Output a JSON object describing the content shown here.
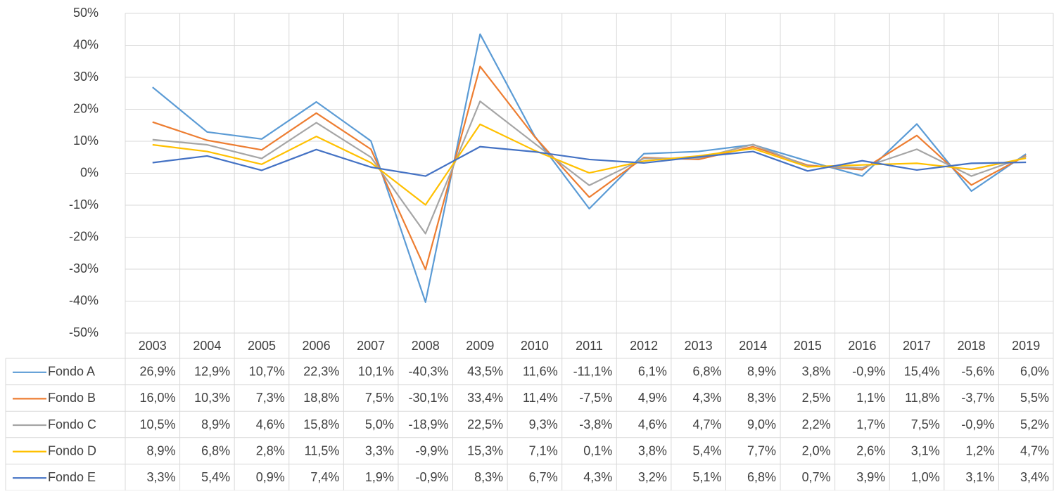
{
  "chart_data": {
    "type": "line",
    "categories": [
      "2003",
      "2004",
      "2005",
      "2006",
      "2007",
      "2008",
      "2009",
      "2010",
      "2011",
      "2012",
      "2013",
      "2014",
      "2015",
      "2016",
      "2017",
      "2018",
      "2019"
    ],
    "series": [
      {
        "name": "Fondo A",
        "color": "#5b9bd5",
        "values": [
          26.9,
          12.9,
          10.7,
          22.3,
          10.1,
          -40.3,
          43.5,
          11.6,
          -11.1,
          6.1,
          6.8,
          8.9,
          3.8,
          -0.9,
          15.4,
          -5.6,
          6.0
        ],
        "value_labels": [
          "26,9%",
          "12,9%",
          "10,7%",
          "22,3%",
          "10,1%",
          "-40,3%",
          "43,5%",
          "11,6%",
          "-11,1%",
          "6,1%",
          "6,8%",
          "8,9%",
          "3,8%",
          "-0,9%",
          "15,4%",
          "-5,6%",
          "6,0%"
        ]
      },
      {
        "name": "Fondo B",
        "color": "#ed7d31",
        "values": [
          16.0,
          10.3,
          7.3,
          18.8,
          7.5,
          -30.1,
          33.4,
          11.4,
          -7.5,
          4.9,
          4.3,
          8.3,
          2.5,
          1.1,
          11.8,
          -3.7,
          5.5
        ],
        "value_labels": [
          "16,0%",
          "10,3%",
          "7,3%",
          "18,8%",
          "7,5%",
          "-30,1%",
          "33,4%",
          "11,4%",
          "-7,5%",
          "4,9%",
          "4,3%",
          "8,3%",
          "2,5%",
          "1,1%",
          "11,8%",
          "-3,7%",
          "5,5%"
        ]
      },
      {
        "name": "Fondo C",
        "color": "#a5a5a5",
        "values": [
          10.5,
          8.9,
          4.6,
          15.8,
          5.0,
          -18.9,
          22.5,
          9.3,
          -3.8,
          4.6,
          4.7,
          9.0,
          2.2,
          1.7,
          7.5,
          -0.9,
          5.2
        ],
        "value_labels": [
          "10,5%",
          "8,9%",
          "4,6%",
          "15,8%",
          "5,0%",
          "-18,9%",
          "22,5%",
          "9,3%",
          "-3,8%",
          "4,6%",
          "4,7%",
          "9,0%",
          "2,2%",
          "1,7%",
          "7,5%",
          "-0,9%",
          "5,2%"
        ]
      },
      {
        "name": "Fondo D",
        "color": "#ffc000",
        "values": [
          8.9,
          6.8,
          2.8,
          11.5,
          3.3,
          -9.9,
          15.3,
          7.1,
          0.1,
          3.8,
          5.4,
          7.7,
          2.0,
          2.6,
          3.1,
          1.2,
          4.7
        ],
        "value_labels": [
          "8,9%",
          "6,8%",
          "2,8%",
          "11,5%",
          "3,3%",
          "-9,9%",
          "15,3%",
          "7,1%",
          "0,1%",
          "3,8%",
          "5,4%",
          "7,7%",
          "2,0%",
          "2,6%",
          "3,1%",
          "1,2%",
          "4,7%"
        ]
      },
      {
        "name": "Fondo E",
        "color": "#4472c4",
        "values": [
          3.3,
          5.4,
          0.9,
          7.4,
          1.9,
          -0.9,
          8.3,
          6.7,
          4.3,
          3.2,
          5.1,
          6.8,
          0.7,
          3.9,
          1.0,
          3.1,
          3.4
        ],
        "value_labels": [
          "3,3%",
          "5,4%",
          "0,9%",
          "7,4%",
          "1,9%",
          "-0,9%",
          "8,3%",
          "6,7%",
          "4,3%",
          "3,2%",
          "5,1%",
          "6,8%",
          "0,7%",
          "3,9%",
          "1,0%",
          "3,1%",
          "3,4%"
        ]
      }
    ],
    "ylim": [
      -50,
      50
    ],
    "yticks": [
      {
        "value": -50,
        "label": "-50%"
      },
      {
        "value": -40,
        "label": "-40%"
      },
      {
        "value": -30,
        "label": "-30%"
      },
      {
        "value": -20,
        "label": "-20%"
      },
      {
        "value": -10,
        "label": "-10%"
      },
      {
        "value": 0,
        "label": "0%"
      },
      {
        "value": 10,
        "label": "10%"
      },
      {
        "value": 20,
        "label": "20%"
      },
      {
        "value": 30,
        "label": "30%"
      },
      {
        "value": 40,
        "label": "40%"
      },
      {
        "value": 50,
        "label": "50%"
      }
    ],
    "grid": true
  }
}
